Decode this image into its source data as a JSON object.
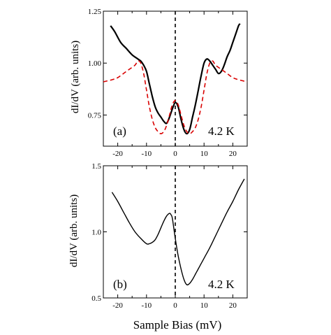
{
  "figure": {
    "x_axis_label": "Sample Bias (mV)"
  },
  "chart_data": [
    {
      "panel": "(a)",
      "type": "line",
      "ylabel": "dI/dV (arb. units)",
      "xlim": [
        -25,
        25
      ],
      "ylim": [
        0.6,
        1.25
      ],
      "x_ticks": [
        -20,
        -10,
        0,
        10,
        20
      ],
      "x_tick_labels": [
        "-20",
        "-10",
        "0",
        "10",
        "20"
      ],
      "y_ticks": [
        0.75,
        1.0,
        1.25
      ],
      "y_tick_labels": [
        "0.75",
        "1.00",
        "1.25"
      ],
      "temperature_label": "4.2 K",
      "zero_bias_line": {
        "x": 0,
        "style": "dashed",
        "color": "#000000"
      },
      "series": [
        {
          "style": "solid",
          "color": "#000000",
          "x": [
            -22.5,
            -21,
            -19,
            -17,
            -15,
            -13,
            -12,
            -11,
            -10,
            -9,
            -8,
            -7,
            -6,
            -5,
            -4,
            -3,
            -2,
            -1,
            0,
            1,
            2,
            3,
            4,
            5,
            6,
            7,
            8,
            9,
            10,
            11,
            12,
            13,
            14,
            15,
            16,
            17,
            18,
            19,
            20,
            21,
            22,
            22.5
          ],
          "y": [
            1.18,
            1.15,
            1.1,
            1.07,
            1.04,
            1.02,
            1.01,
            0.99,
            0.96,
            0.9,
            0.84,
            0.79,
            0.76,
            0.74,
            0.72,
            0.71,
            0.74,
            0.78,
            0.81,
            0.79,
            0.73,
            0.68,
            0.66,
            0.68,
            0.74,
            0.8,
            0.87,
            0.94,
            1.0,
            1.02,
            1.01,
            0.99,
            0.97,
            0.95,
            0.96,
            0.99,
            1.03,
            1.06,
            1.1,
            1.14,
            1.18,
            1.19
          ]
        },
        {
          "style": "dashed",
          "color": "#d90000",
          "x": [
            -25,
            -22,
            -20,
            -18,
            -16,
            -14,
            -13,
            -12,
            -11,
            -10,
            -9,
            -8,
            -7,
            -6,
            -5,
            -4,
            -3,
            -2,
            -1,
            0,
            1,
            2,
            3,
            4,
            5,
            6,
            7,
            8,
            9,
            10,
            11,
            12,
            13,
            14,
            16,
            18,
            20,
            22,
            25
          ],
          "y": [
            0.91,
            0.92,
            0.93,
            0.95,
            0.97,
            0.99,
            1.01,
            1.0,
            0.95,
            0.87,
            0.79,
            0.73,
            0.69,
            0.67,
            0.66,
            0.67,
            0.7,
            0.75,
            0.8,
            0.82,
            0.8,
            0.75,
            0.7,
            0.67,
            0.66,
            0.67,
            0.69,
            0.73,
            0.79,
            0.87,
            0.95,
            1.0,
            1.01,
            0.99,
            0.97,
            0.95,
            0.93,
            0.92,
            0.91
          ]
        }
      ]
    },
    {
      "panel": "(b)",
      "type": "line",
      "ylabel": "dI/dV (arb. units)",
      "xlim": [
        -25,
        25
      ],
      "ylim": [
        0.5,
        1.5
      ],
      "x_ticks": [
        -20,
        -10,
        0,
        10,
        20
      ],
      "x_tick_labels": [
        "-20",
        "-10",
        "0",
        "10",
        "20"
      ],
      "y_ticks": [
        0.5,
        1.0,
        1.5
      ],
      "y_tick_labels": [
        "0.5",
        "1.0",
        "1.5"
      ],
      "temperature_label": "4.2 K",
      "zero_bias_line": {
        "x": 0,
        "style": "dashed",
        "color": "#000000"
      },
      "series": [
        {
          "style": "solid",
          "color": "#000000",
          "x": [
            -22,
            -20,
            -18,
            -16,
            -14,
            -12,
            -10,
            -9,
            -8,
            -7,
            -6,
            -5,
            -4,
            -3,
            -2,
            -1.5,
            -1,
            0,
            1,
            2,
            3,
            4,
            5,
            6,
            7,
            8,
            10,
            12,
            14,
            16,
            18,
            20,
            22,
            24
          ],
          "y": [
            1.3,
            1.23,
            1.15,
            1.07,
            1.0,
            0.95,
            0.91,
            0.91,
            0.92,
            0.94,
            0.98,
            1.03,
            1.08,
            1.12,
            1.14,
            1.13,
            1.1,
            0.95,
            0.82,
            0.72,
            0.64,
            0.6,
            0.61,
            0.64,
            0.68,
            0.72,
            0.8,
            0.88,
            0.97,
            1.06,
            1.15,
            1.23,
            1.32,
            1.4
          ]
        }
      ]
    }
  ]
}
